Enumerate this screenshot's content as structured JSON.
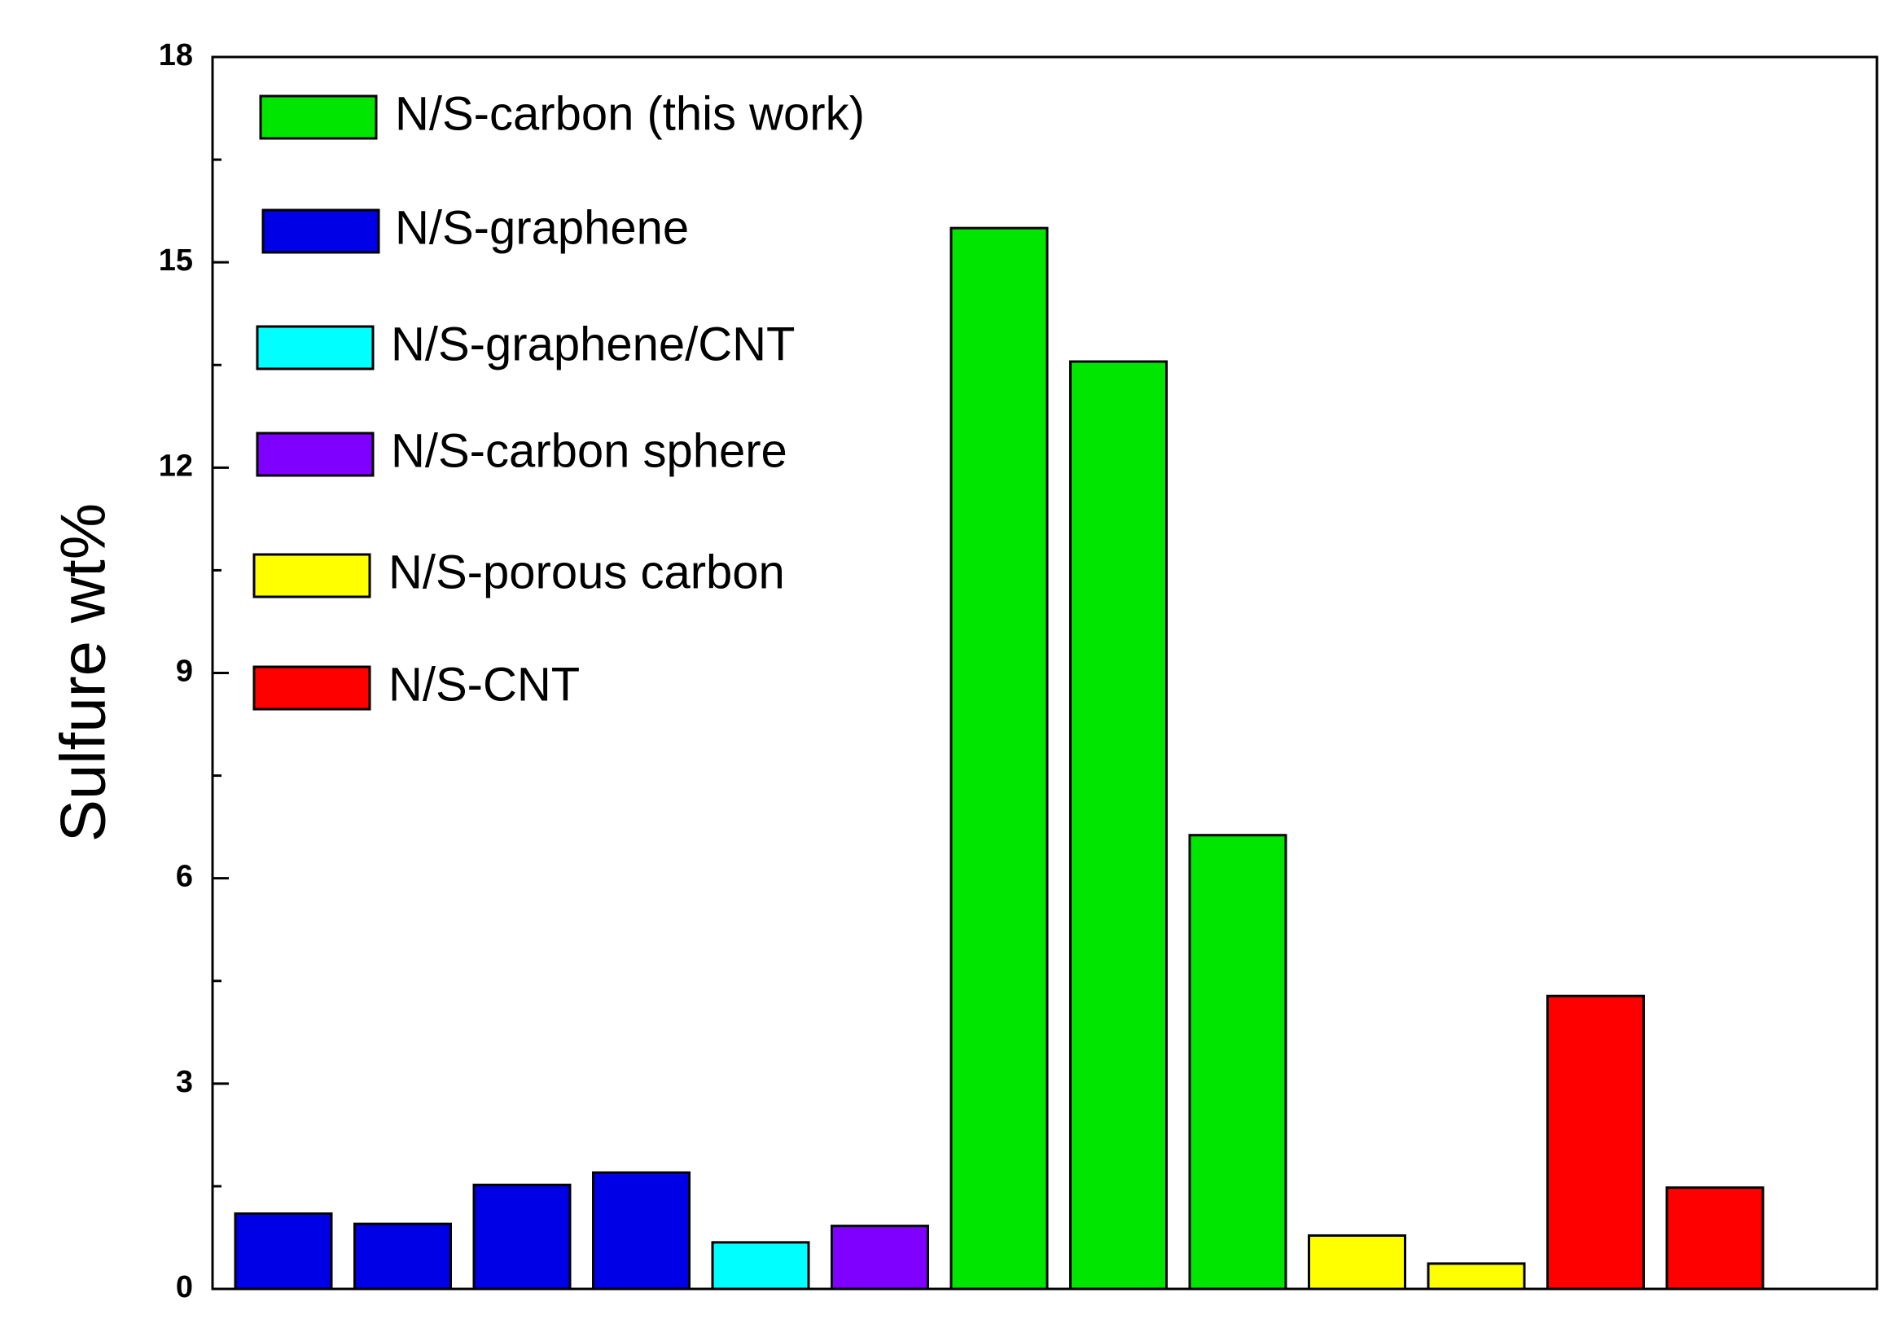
{
  "chart_data": {
    "type": "bar",
    "title": "",
    "xlabel": "",
    "ylabel": "Sulfure wt%",
    "ylim": [
      0,
      18
    ],
    "yticks": [
      0,
      3,
      6,
      9,
      12,
      15,
      18
    ],
    "grid": false,
    "legend_position": "top-left",
    "series": [
      {
        "name": "N/S-carbon (this work)",
        "color": "#00e600"
      },
      {
        "name": "N/S-graphene",
        "color": "#0000e6"
      },
      {
        "name": "N/S-graphene/CNT",
        "color": "#00ffff"
      },
      {
        "name": "N/S-carbon sphere",
        "color": "#7f00ff"
      },
      {
        "name": "N/S-porous carbon",
        "color": "#ffff00"
      },
      {
        "name": "N/S-CNT",
        "color": "#ff0000"
      }
    ],
    "bars": [
      {
        "series": "N/S-graphene",
        "value": 1.1
      },
      {
        "series": "N/S-graphene",
        "value": 0.95
      },
      {
        "series": "N/S-graphene",
        "value": 1.52
      },
      {
        "series": "N/S-graphene",
        "value": 1.7
      },
      {
        "series": "N/S-graphene/CNT",
        "value": 0.68
      },
      {
        "series": "N/S-carbon sphere",
        "value": 0.92
      },
      {
        "series": "N/S-carbon (this work)",
        "value": 15.5
      },
      {
        "series": "N/S-carbon (this work)",
        "value": 13.55
      },
      {
        "series": "N/S-carbon (this work)",
        "value": 6.63
      },
      {
        "series": "N/S-porous carbon",
        "value": 0.78
      },
      {
        "series": "N/S-porous carbon",
        "value": 0.37
      },
      {
        "series": "N/S-CNT",
        "value": 4.28
      },
      {
        "series": "N/S-CNT",
        "value": 1.48
      }
    ]
  }
}
